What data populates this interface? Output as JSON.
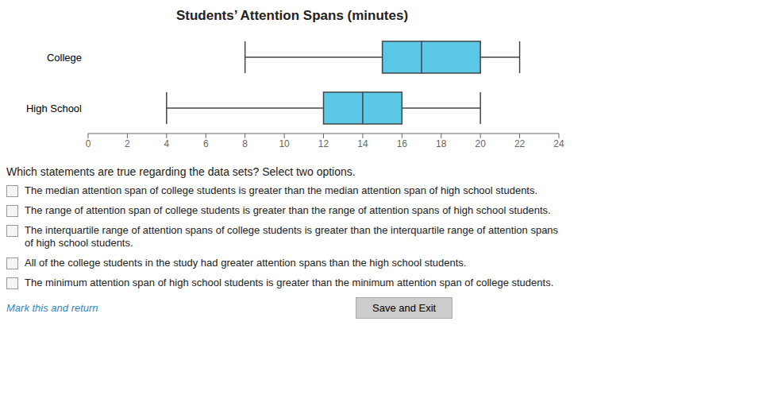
{
  "chart_data": {
    "type": "box",
    "title": "Students’ Attention Spans (minutes)",
    "categories": [
      "College",
      "High School"
    ],
    "min": [
      8,
      4
    ],
    "q1": [
      15,
      12
    ],
    "median": [
      17,
      14
    ],
    "q3": [
      20,
      16
    ],
    "max": [
      22,
      20
    ],
    "color": "#5BC8E8",
    "xlim": [
      0,
      24
    ],
    "xticks": [
      0,
      2,
      4,
      6,
      8,
      10,
      12,
      14,
      16,
      18,
      20,
      22,
      24
    ],
    "grid": false,
    "annotations": [
      "Which statements are true regarding the data sets? Select two options.",
      "The median attention span of college students is greater than the median attention span of high school students.",
      "The range of attention span of college students is greater than the range of attention spans of high school students.",
      "The interquartile range of attention spans of college students is greater than the interquartile range of attention spans\nof high school students.",
      "All of the college students in the study had greater attention spans than the high school students.",
      "The minimum attention span of high school students is greater than the minimum attention span of college students.",
      "Mark this and return",
      "Save and Exit"
    ]
  }
}
